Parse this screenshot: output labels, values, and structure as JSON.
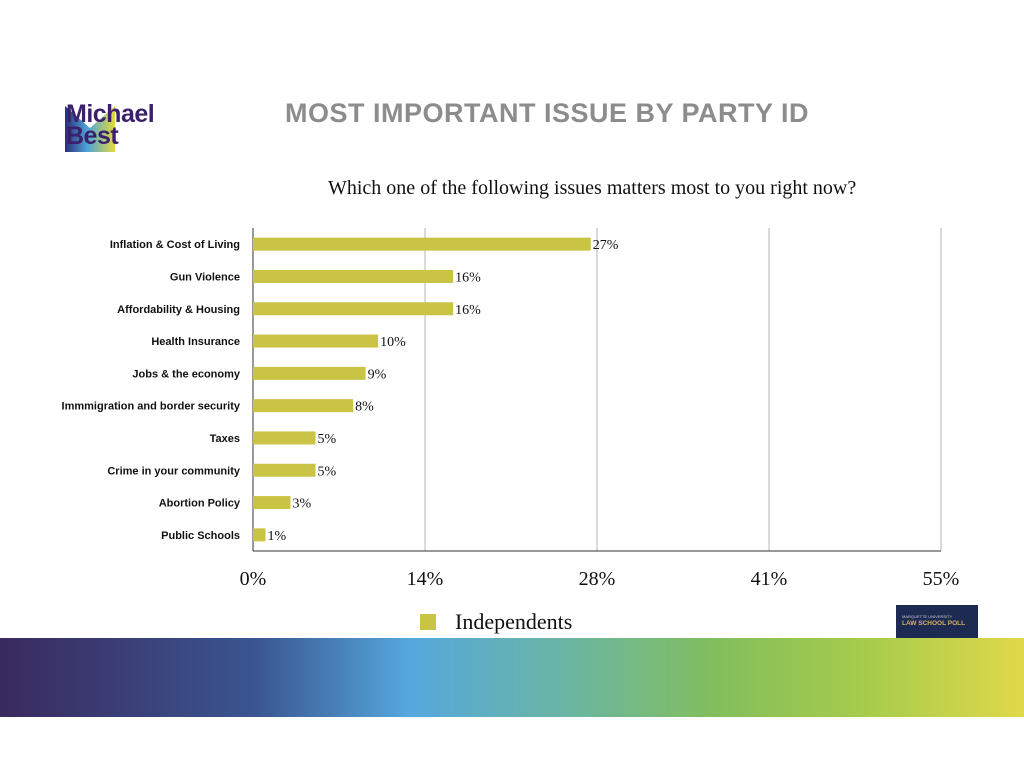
{
  "logo": {
    "line1": "Michael",
    "line2": "Best"
  },
  "title": "MOST IMPORTANT ISSUE BY PARTY ID",
  "footer_logo": {
    "line1": "MARQUETTE UNIVERSITY",
    "line2": "LAW SCHOOL POLL"
  },
  "colors": {
    "bar": "#c9c444",
    "title": "#8c8c8c"
  },
  "chart_data": {
    "type": "bar",
    "orientation": "horizontal",
    "title": "Which one of the following issues matters most to you right now?",
    "categories": [
      "Inflation & Cost of Living",
      "Gun Violence",
      "Affordability & Housing",
      "Health Insurance",
      "Jobs & the economy",
      "Immmigration and border security",
      "Taxes",
      "Crime in your community",
      "Abortion Policy",
      "Public Schools"
    ],
    "series": [
      {
        "name": "Independents",
        "values": [
          27,
          16,
          16,
          10,
          9,
          8,
          5,
          5,
          3,
          1
        ]
      }
    ],
    "data_labels": [
      "27%",
      "16%",
      "16%",
      "10%",
      "9%",
      "8%",
      "5%",
      "5%",
      "3%",
      "1%"
    ],
    "xlim": [
      0,
      55
    ],
    "xticks": [
      0,
      13.75,
      27.5,
      41.25,
      55
    ],
    "xtick_labels": [
      "0%",
      "14%",
      "28%",
      "41%",
      "55%"
    ],
    "grid": "vertical",
    "legend": "bottom"
  }
}
